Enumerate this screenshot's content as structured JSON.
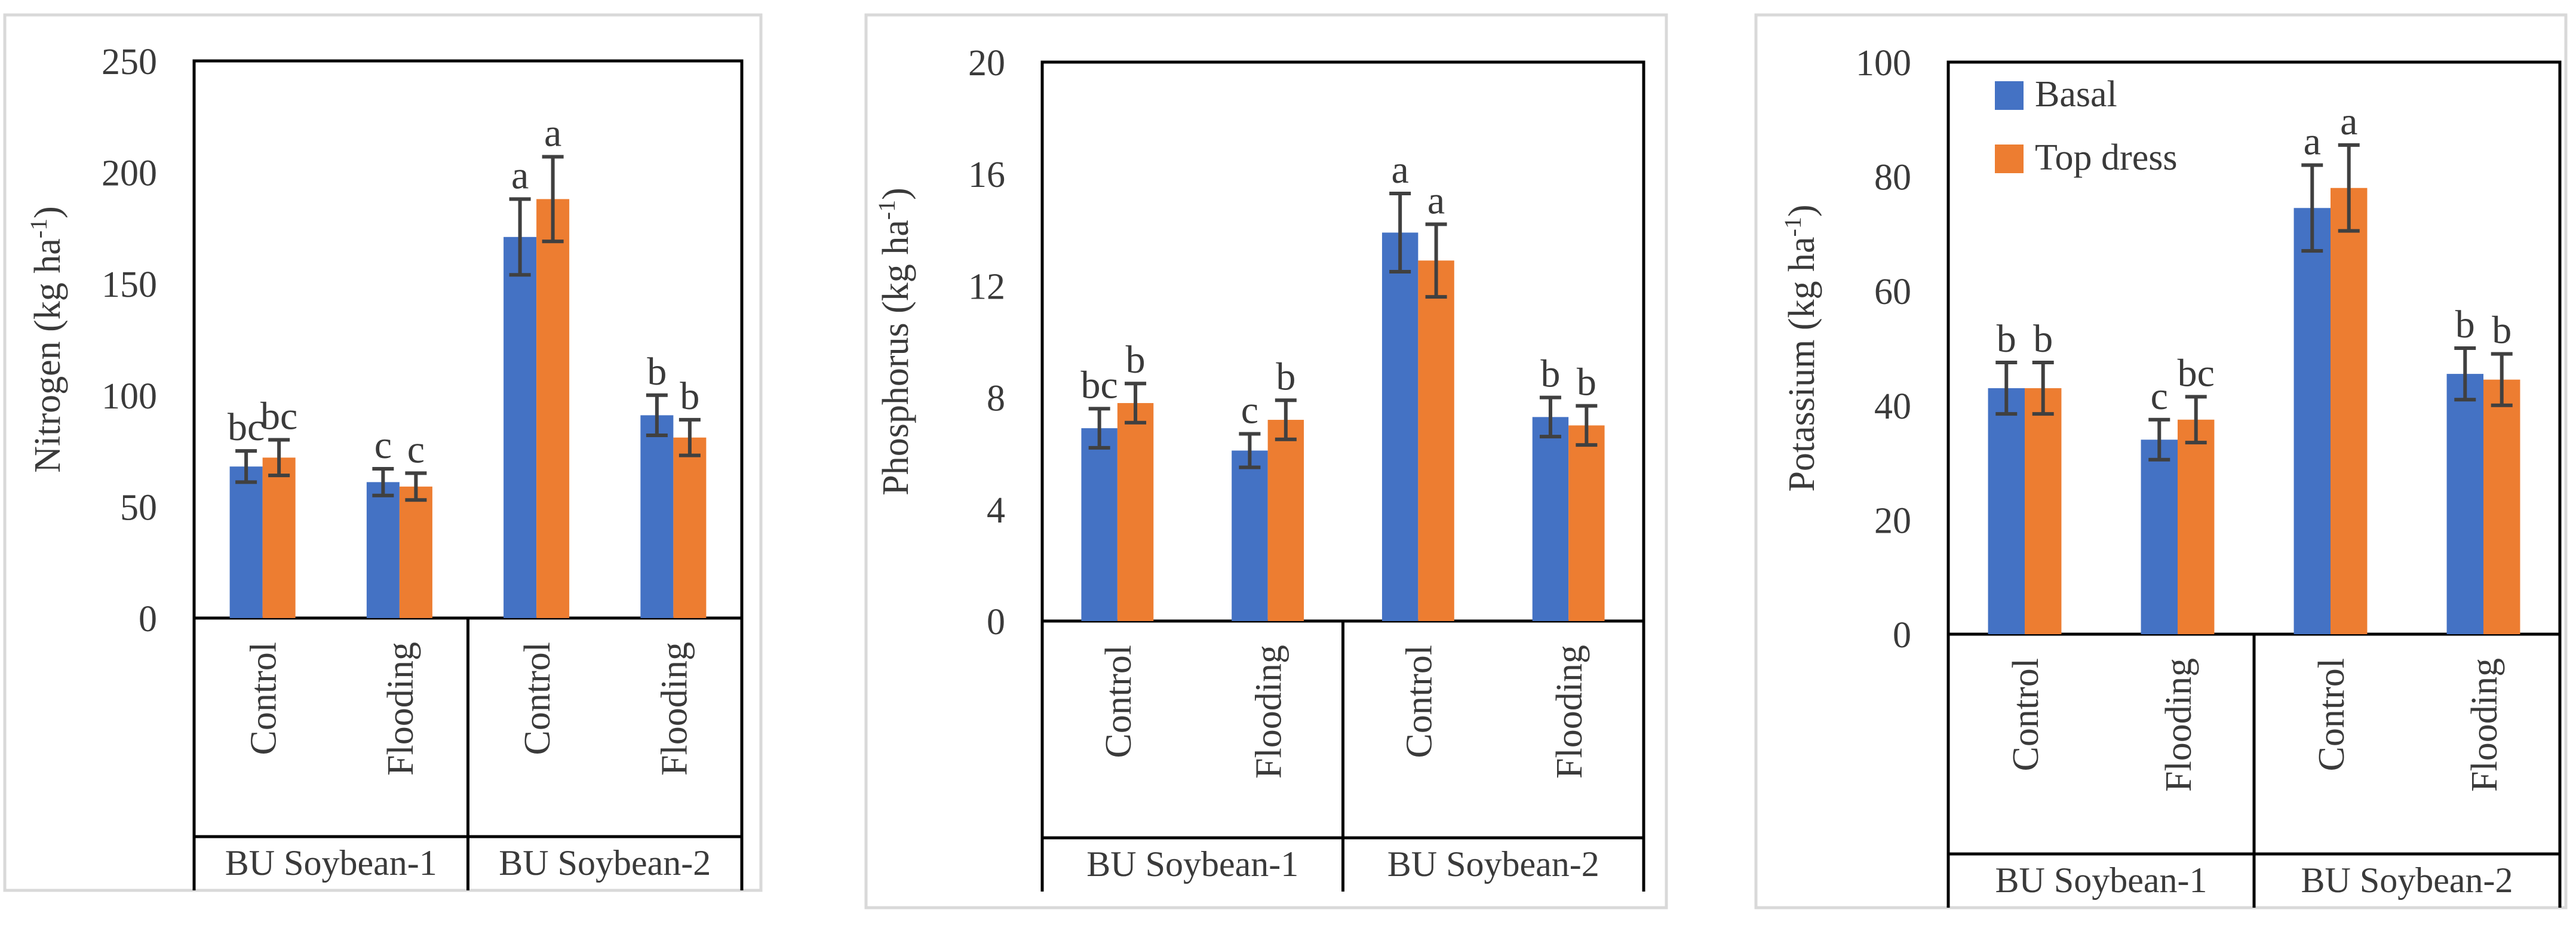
{
  "figure": {
    "colors": {
      "basal": "#4472C4",
      "top_dress": "#ED7D31",
      "error_bar": "#404040",
      "frame": "#000000",
      "panel_border": "#d9d9d9"
    }
  },
  "chart_data": [
    {
      "type": "bar",
      "ylabel_main": "Nitrogen (kg ha",
      "ylabel_sup": "-1",
      "ylabel_close": ")",
      "ylim": [
        0,
        250
      ],
      "yticks": [
        "0",
        "50",
        "100",
        "150",
        "200",
        "250"
      ],
      "yticks_values": [
        0,
        50,
        100,
        150,
        200,
        250
      ],
      "categories": [
        "Control",
        "Flooding",
        "Control",
        "Flooding"
      ],
      "groups": [
        "BU Soybean-1",
        "BU Soybean-2"
      ],
      "legend": null,
      "series": [
        {
          "name": "Basal",
          "values": [
            68,
            61,
            171,
            91
          ],
          "errors": [
            7,
            6,
            17,
            9
          ],
          "letters": [
            "bc",
            "c",
            "a",
            "b"
          ]
        },
        {
          "name": "Top dress",
          "values": [
            72,
            59,
            188,
            81
          ],
          "errors": [
            8,
            6,
            19,
            8
          ],
          "letters": [
            "bc",
            "c",
            "a",
            "b"
          ]
        }
      ]
    },
    {
      "type": "bar",
      "ylabel_main": "Phosphorus (kg ha",
      "ylabel_sup": "-1",
      "ylabel_close": ")",
      "ylim": [
        0,
        20
      ],
      "yticks": [
        "0",
        "4",
        "8",
        "12",
        "16",
        "20"
      ],
      "yticks_values": [
        0,
        4,
        8,
        12,
        16,
        20
      ],
      "categories": [
        "Control",
        "Flooding",
        "Control",
        "Flooding"
      ],
      "groups": [
        "BU Soybean-1",
        "BU Soybean-2"
      ],
      "legend": null,
      "series": [
        {
          "name": "Basal",
          "values": [
            6.9,
            6.1,
            13.9,
            7.3
          ],
          "errors": [
            0.7,
            0.6,
            1.4,
            0.7
          ],
          "letters": [
            "bc",
            "c",
            "a",
            "b"
          ]
        },
        {
          "name": "Top dress",
          "values": [
            7.8,
            7.2,
            12.9,
            7.0
          ],
          "errors": [
            0.7,
            0.7,
            1.3,
            0.7
          ],
          "letters": [
            "b",
            "b",
            "a",
            "b"
          ]
        }
      ]
    },
    {
      "type": "bar",
      "ylabel_main": "Potassium (kg ha",
      "ylabel_sup": "-1",
      "ylabel_close": ")",
      "ylim": [
        0,
        100
      ],
      "yticks": [
        "0",
        "20",
        "40",
        "60",
        "80",
        "100"
      ],
      "yticks_values": [
        0,
        20,
        40,
        60,
        80,
        100
      ],
      "categories": [
        "Control",
        "Flooding",
        "Control",
        "Flooding"
      ],
      "groups": [
        "BU Soybean-1",
        "BU Soybean-2"
      ],
      "legend": {
        "position": "top-left",
        "entries": [
          "Basal",
          "Top dress"
        ]
      },
      "series": [
        {
          "name": "Basal",
          "values": [
            43,
            34,
            74.5,
            45.5
          ],
          "errors": [
            4.5,
            3.5,
            7.5,
            4.5
          ],
          "letters": [
            "b",
            "c",
            "a",
            "b"
          ]
        },
        {
          "name": "Top dress",
          "values": [
            43,
            37.5,
            78,
            44.5
          ],
          "errors": [
            4.5,
            4,
            7.5,
            4.5
          ],
          "letters": [
            "b",
            "bc",
            "a",
            "b"
          ]
        }
      ]
    }
  ]
}
